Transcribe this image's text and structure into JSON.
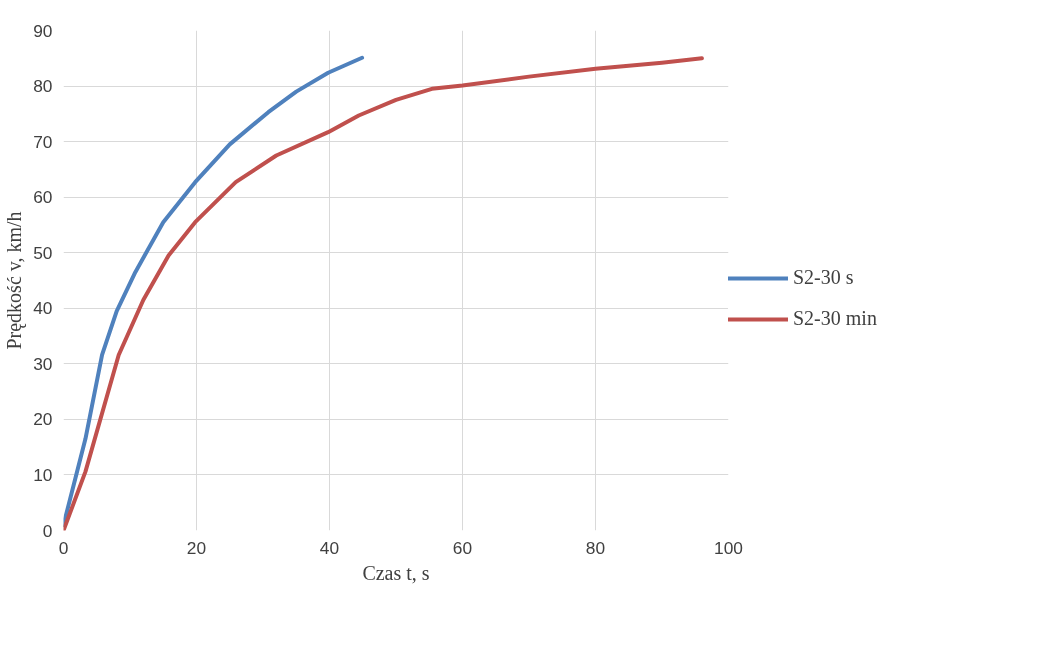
{
  "chart_data": {
    "type": "line",
    "xlabel": "Czas t, s",
    "ylabel": "Prędkość v, km/h",
    "xlim": [
      0,
      100
    ],
    "ylim": [
      0,
      90
    ],
    "xticks": [
      0,
      20,
      40,
      60,
      80,
      100
    ],
    "yticks": [
      0,
      10,
      20,
      30,
      40,
      50,
      60,
      70,
      80,
      90
    ],
    "grid": true,
    "legend": "right",
    "marker": "none",
    "line_style": "solid",
    "series": [
      {
        "name": "S2-30 s",
        "color": "#4f81bd",
        "x": [
          0,
          3.3,
          5.8,
          8,
          10.8,
          15,
          19.8,
          25,
          30.8,
          35,
          39.8,
          44.9
        ],
        "values": [
          1,
          16.5,
          31.6,
          39.5,
          46.5,
          55.5,
          62.7,
          69.5,
          75.3,
          79,
          82.4,
          85.1
        ]
      },
      {
        "name": "S2-30 min",
        "color": "#c0504d",
        "x": [
          0,
          3.3,
          8.3,
          12,
          15.8,
          19.8,
          25.9,
          32,
          39.8,
          44.4,
          50,
          55.4,
          60,
          70,
          80,
          90,
          96
        ],
        "values": [
          0,
          10.6,
          31.6,
          41.5,
          49.5,
          55.5,
          62.7,
          67.5,
          71.7,
          74.7,
          77.5,
          79.5,
          80.1,
          81.7,
          83.1,
          84.2,
          85
        ]
      }
    ]
  }
}
